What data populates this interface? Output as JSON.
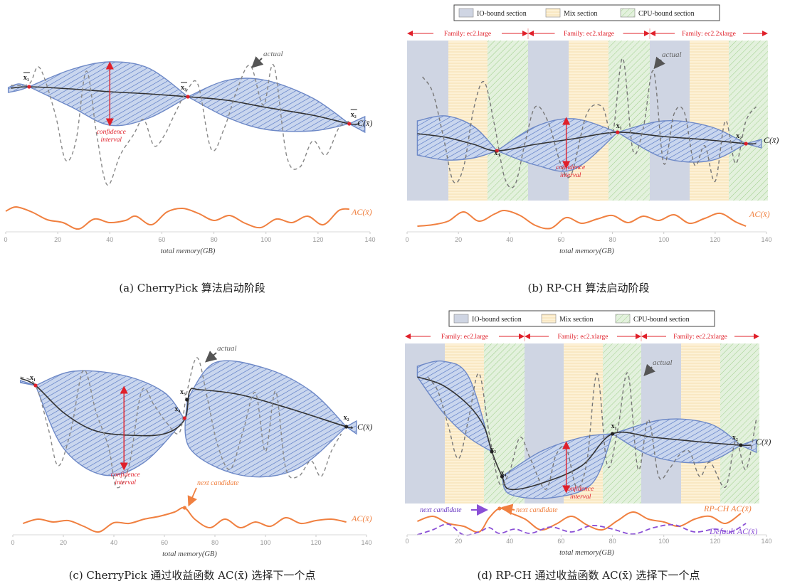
{
  "chart_data": [
    {
      "type": "line",
      "panel": "a",
      "caption": "(a) CherryPick 算法启动阶段",
      "xlabel": "total memory(GB)",
      "xlim": [
        0,
        140
      ],
      "xticks": [
        "0",
        "20",
        "40",
        "60",
        "80",
        "100",
        "120",
        "140"
      ],
      "mean_curve_label": "C(x̄)",
      "ac_label": "AC(x̄)",
      "actual_label": "actual",
      "confidence_label": [
        "confidence",
        "interval"
      ],
      "points": [
        {
          "name": "x₁",
          "x": 9
        },
        {
          "name": "x₃",
          "x": 70
        },
        {
          "name": "x₂",
          "x": 132
        }
      ],
      "series": [
        {
          "name": "actual",
          "x": [
            2,
            9,
            15,
            20,
            28,
            33,
            39,
            45,
            50,
            55,
            60,
            65,
            70,
            75,
            79,
            84,
            89,
            94,
            100,
            106,
            112,
            118,
            124,
            128,
            132
          ]
        },
        {
          "name": "AC(x̄)",
          "x": [
            0,
            10,
            20,
            30,
            40,
            50,
            60,
            70,
            80,
            90,
            100,
            110,
            120,
            130
          ]
        }
      ]
    },
    {
      "type": "line",
      "panel": "b",
      "caption": "(b) RP-CH 算法启动阶段",
      "xlabel": "total memory(GB)",
      "xlim": [
        0,
        140
      ],
      "xticks": [
        "0",
        "20",
        "40",
        "60",
        "80",
        "100",
        "120",
        "140"
      ],
      "legend": [
        "IO-bound section",
        "Mix section",
        "CPU-bound section"
      ],
      "families": [
        "Family: ec2.large",
        "Family: ec2.xlarge",
        "Family: ec2.2xlarge"
      ],
      "mean_curve_label": "C(x̄)",
      "ac_label": "AC(x̄)",
      "actual_label": "actual",
      "confidence_label": [
        "confidence",
        "interval"
      ],
      "points": [
        {
          "name": "x₃",
          "x": 35
        },
        {
          "name": "x₁",
          "x": 82
        },
        {
          "name": "x₂",
          "x": 132
        }
      ]
    },
    {
      "type": "line",
      "panel": "c",
      "caption": "(c) CherryPick 通过收益函数 AC(x̄) 选择下一个点",
      "xlabel": "total memory(GB)",
      "xlim": [
        0,
        140
      ],
      "xticks": [
        "0",
        "20",
        "40",
        "60",
        "80",
        "100",
        "120",
        "140"
      ],
      "mean_curve_label": "C(x̄)",
      "ac_label": "AC(x̄)",
      "actual_label": "actual",
      "confidence_label": [
        "confidence",
        "interval"
      ],
      "next_candidate_label": "next candidate",
      "points": [
        {
          "name": "x₁",
          "x": 9
        },
        {
          "name": "x₃",
          "x": 69
        },
        {
          "name": "x₄",
          "x": 68
        },
        {
          "name": "x₂",
          "x": 132
        }
      ]
    },
    {
      "type": "line",
      "panel": "d",
      "caption": "(d) RP-CH 通过收益函数 AC(x̄) 选择下一个点",
      "xlabel": "total memory(GB)",
      "xlim": [
        0,
        140
      ],
      "xticks": [
        "0",
        "20",
        "40",
        "60",
        "80",
        "100",
        "120",
        "140"
      ],
      "legend": [
        "IO-bound section",
        "Mix section",
        "CPU-bound section"
      ],
      "families": [
        "Family: ec2.large",
        "Family: ec2.xlarge",
        "Family: ec2.2xlarge"
      ],
      "mean_curve_label": "C(x̄)",
      "ac_label_rp": "RP-CH AC(x̄)",
      "ac_label_default": "Default AC(x̄)",
      "actual_label": "actual",
      "confidence_label": [
        "confidence",
        "interval"
      ],
      "next_candidate_label": "next candidate",
      "points": [
        {
          "name": "x₃",
          "x": 33
        },
        {
          "name": "x₄",
          "x": 37
        },
        {
          "name": "x₁",
          "x": 80
        },
        {
          "name": "x₂",
          "x": 130
        }
      ]
    }
  ],
  "colors": {
    "band_fill": "#c9d6ee",
    "band_stroke": "#6e89c7",
    "hatch": "#4d6fc0",
    "io_section": "#cfd5e3",
    "mix_section": "#fdf1d6",
    "cpu_section": "#e3f1dd",
    "ac": "#f08040",
    "default_ac": "#8a4fd6",
    "red": "#e0202a"
  }
}
